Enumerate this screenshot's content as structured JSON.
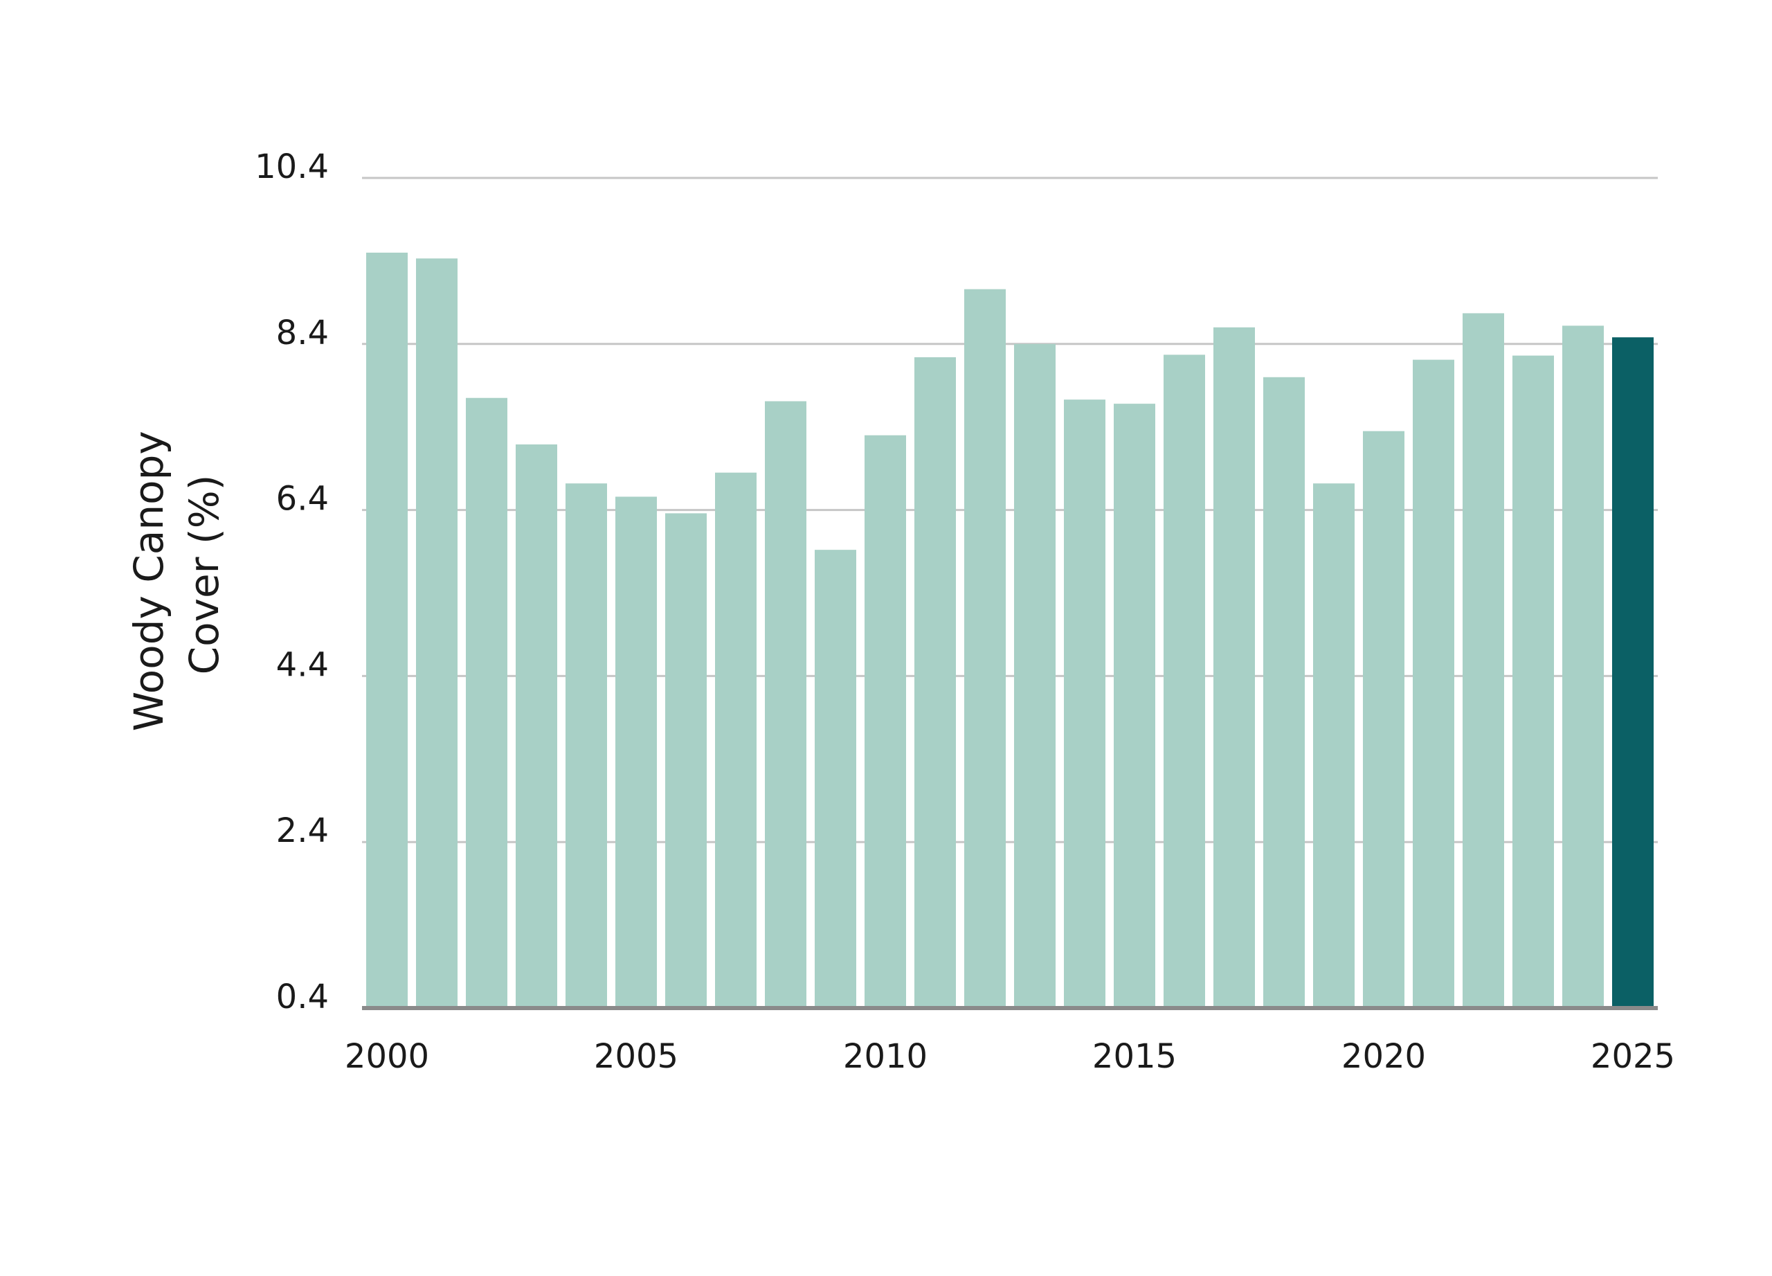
{
  "chart_data": {
    "type": "bar",
    "title": "",
    "xlabel": "",
    "ylabel": "Woody Canopy Cover (%)",
    "ylabel_lines": [
      "Woody Canopy",
      "Cover (%)"
    ],
    "categories": [
      "2000",
      "2001",
      "2002",
      "2003",
      "2004",
      "2005",
      "2006",
      "2007",
      "2008",
      "2009",
      "2010",
      "2011",
      "2012",
      "2013",
      "2014",
      "2015",
      "2016",
      "2017",
      "2018",
      "2019",
      "2020",
      "2021",
      "2022",
      "2023",
      "2024",
      "2025"
    ],
    "values": [
      9.5,
      9.43,
      7.75,
      7.19,
      6.72,
      6.56,
      6.36,
      6.85,
      7.71,
      5.92,
      7.3,
      8.24,
      9.06,
      8.4,
      7.73,
      7.68,
      8.27,
      8.6,
      8.0,
      6.72,
      7.35,
      8.21,
      8.77,
      8.26,
      8.62,
      8.48
    ],
    "highlight_index": 25,
    "ylim": [
      0.4,
      10.4
    ],
    "yticks": [
      0.4,
      2.4,
      4.4,
      6.4,
      8.4,
      10.4
    ],
    "ytick_labels": [
      "0.4",
      "2.4",
      "4.4",
      "6.4",
      "8.4",
      "10.4"
    ],
    "xtick_labels": [
      "2000",
      "2005",
      "2010",
      "2015",
      "2020",
      "2025"
    ],
    "xtick_every": 5,
    "grid": true,
    "legend": "none",
    "colors": {
      "bar": "#a8d0c6",
      "highlight": "#0b6065",
      "grid": "#c6c6c6",
      "axis": "#8a8a8a",
      "text": "#1a1a1a"
    }
  }
}
